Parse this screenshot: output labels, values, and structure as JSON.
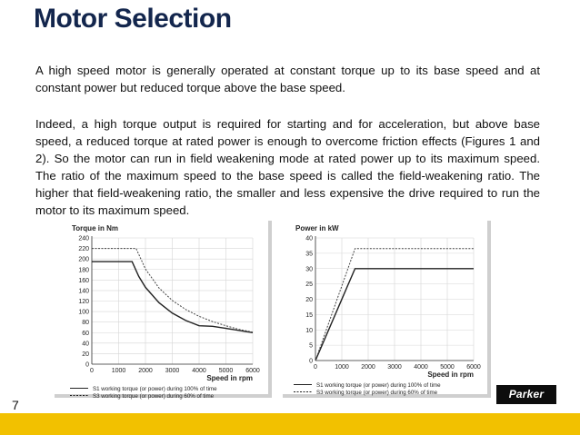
{
  "slide": {
    "title": "Motor Selection",
    "paragraph1": "A high speed motor is generally operated at constant torque up to its base speed and at constant power but reduced torque above the base speed.",
    "paragraph2": "Indeed, a high torque output is required for starting and for acceleration, but above base speed, a reduced torque at rated power is enough to overcome friction effects (Figures 1 and 2). So the motor can run in field weakening mode at rated power up to its maximum speed. The ratio of the maximum speed to the base speed is called the field-weakening ratio. The higher that field-weakening ratio, the smaller and less expensive the drive required to run the motor to its maximum speed.",
    "page_number": "7",
    "logo_text": "Parker",
    "colors": {
      "title": "#13264d",
      "footer": "#f2c100",
      "logo_bg": "#0d0d0d"
    }
  },
  "chart_data": [
    {
      "type": "line",
      "ylabel": "Torque in Nm",
      "xlabel": "Speed in rpm",
      "xlim": [
        0,
        6000
      ],
      "ylim": [
        0,
        240
      ],
      "xticks": [
        0,
        1000,
        2000,
        3000,
        4000,
        5000,
        6000
      ],
      "yticks": [
        0,
        20,
        40,
        60,
        80,
        100,
        120,
        140,
        160,
        180,
        200,
        220,
        240
      ],
      "grid": true,
      "series": [
        {
          "name": "S1 working torque (or power) during 100% of time",
          "style": "solid",
          "x": [
            0,
            1500,
            1750,
            2000,
            2500,
            3000,
            3500,
            4000,
            4500,
            5000,
            5500,
            6000
          ],
          "y": [
            195,
            195,
            167,
            146,
            117,
            97,
            83,
            73,
            72,
            68,
            64,
            60
          ]
        },
        {
          "name": "S3 working torque (or power) during 60% of time",
          "style": "dashed",
          "x": [
            0,
            1650,
            2000,
            2500,
            3000,
            3500,
            4000,
            4500,
            5000,
            5500,
            6000
          ],
          "y": [
            220,
            220,
            181,
            145,
            121,
            104,
            91,
            81,
            73,
            66,
            61
          ]
        }
      ],
      "legend_position": "bottom"
    },
    {
      "type": "line",
      "ylabel": "Power in kW",
      "xlabel": "Speed in rpm",
      "xlim": [
        0,
        6000
      ],
      "ylim": [
        0,
        40
      ],
      "xticks": [
        0,
        1000,
        2000,
        3000,
        4000,
        5000,
        6000
      ],
      "yticks": [
        0,
        5,
        10,
        15,
        20,
        25,
        30,
        35,
        40
      ],
      "grid": true,
      "series": [
        {
          "name": "S1 working torque (or power) during 100% of time",
          "style": "solid",
          "x": [
            0,
            1500,
            6000
          ],
          "y": [
            0,
            30,
            30
          ]
        },
        {
          "name": "S3 working torque (or power) during 60% of time",
          "style": "dashed",
          "x": [
            0,
            1500,
            6000
          ],
          "y": [
            0,
            36.5,
            36.5
          ]
        }
      ],
      "legend_position": "bottom"
    }
  ]
}
